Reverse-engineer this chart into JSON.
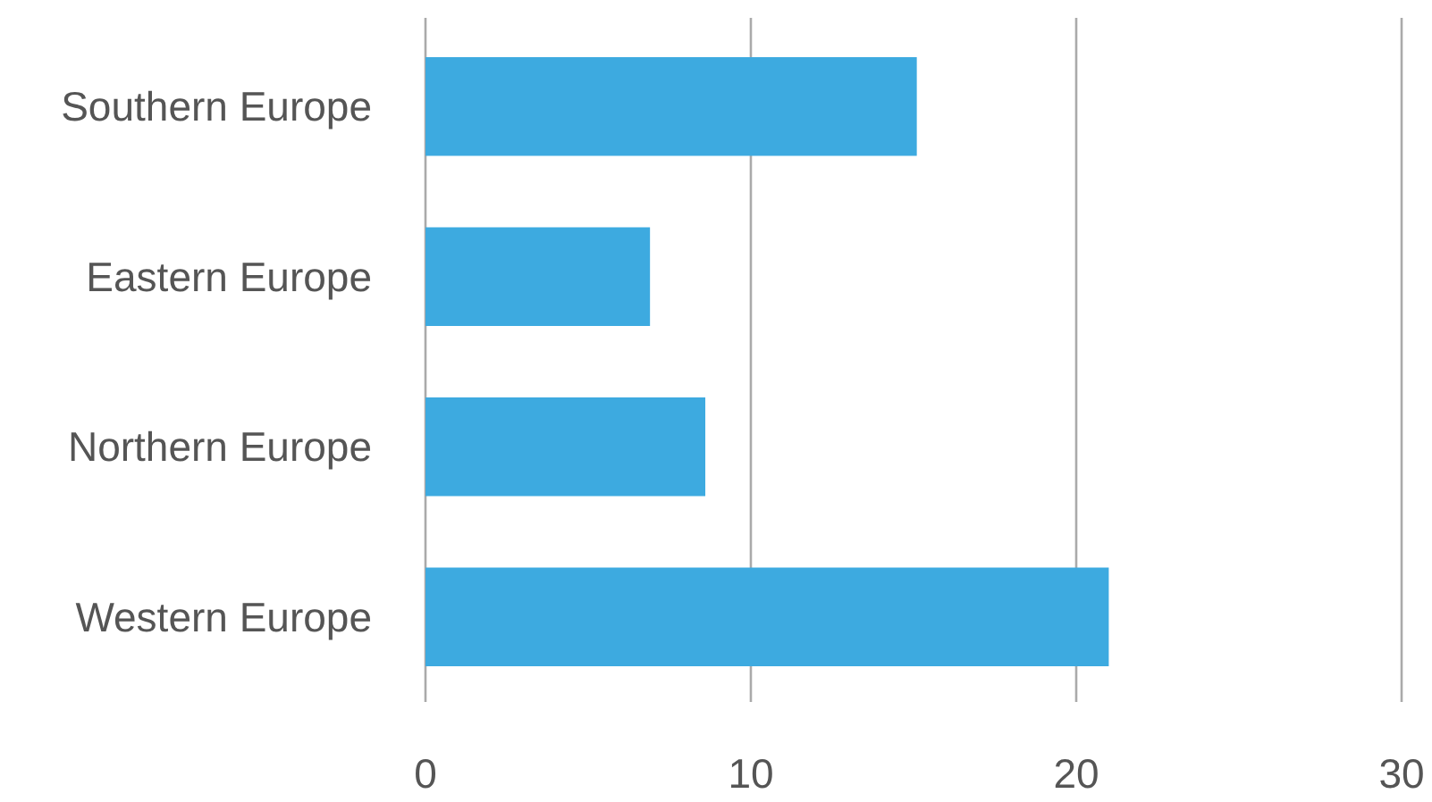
{
  "chart_data": {
    "type": "bar",
    "orientation": "horizontal",
    "categories": [
      "Southern Europe",
      "Eastern Europe",
      "Northern Europe",
      "Western Europe"
    ],
    "values": [
      15.1,
      6.9,
      8.6,
      21.0
    ],
    "color": "#3daae0",
    "xlim": [
      0,
      30
    ],
    "xticks": [
      0,
      10,
      20,
      30
    ],
    "grid": "x"
  }
}
